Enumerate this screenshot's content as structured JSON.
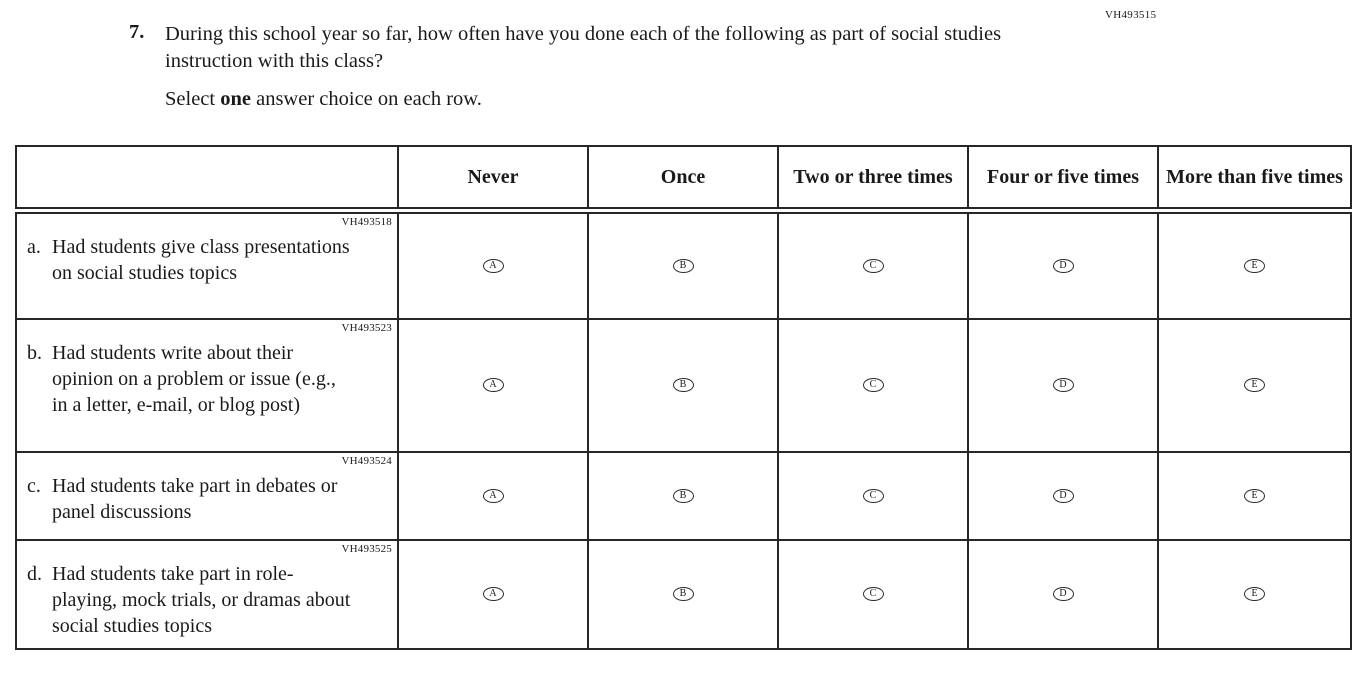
{
  "page_code": "VH493515",
  "question": {
    "number": "7.",
    "text": "During this school year so far, how often have you done each of the following as part of social studies instruction with this class?",
    "instruction": {
      "prefix": "Select ",
      "bold": "one",
      "suffix": " answer choice on each row."
    }
  },
  "table": {
    "column_headers": [
      "Never",
      "Once",
      "Two or three times",
      "Four or five times",
      "More than five times"
    ],
    "rows": [
      {
        "code": "VH493518",
        "letter": "a.",
        "text": "Had students give class presentations on social studies topics",
        "options": [
          "A",
          "B",
          "C",
          "D",
          "E"
        ]
      },
      {
        "code": "VH493523",
        "letter": "b.",
        "text": "Had students write about their opinion on a problem or issue (e.g., in a letter, e-mail, or blog post)",
        "options": [
          "A",
          "B",
          "C",
          "D",
          "E"
        ]
      },
      {
        "code": "VH493524",
        "letter": "c.",
        "text": "Had students take part in debates or panel discussions",
        "options": [
          "A",
          "B",
          "C",
          "D",
          "E"
        ]
      },
      {
        "code": "VH493525",
        "letter": "d.",
        "text": "Had students take part in role-playing, mock trials, or dramas about social studies topics",
        "options": [
          "A",
          "B",
          "C",
          "D",
          "E"
        ]
      }
    ]
  }
}
